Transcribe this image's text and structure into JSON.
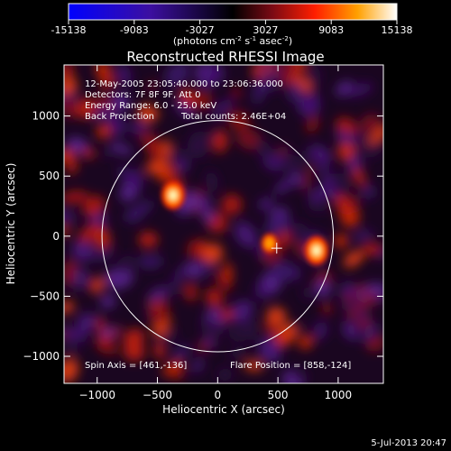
{
  "chart_data": {
    "type": "heatmap",
    "title": "Reconstructed RHESSI Image",
    "xlabel": "Heliocentric X (arcsec)",
    "ylabel": "Heliocentric Y (arcsec)",
    "xlim": [
      -1275,
      1375
    ],
    "ylim": [
      -1225,
      1425
    ],
    "xticks": [
      -1000,
      -500,
      0,
      500,
      1000
    ],
    "yticks": [
      -1000,
      -500,
      0,
      500,
      1000
    ],
    "colorbar": {
      "ticks": [
        "-15138",
        "-9083",
        "-3027",
        "3027",
        "9083",
        "15138"
      ],
      "range": [
        -15138,
        15138
      ],
      "unit_main": "(photons cm",
      "unit_sup1": "-2",
      "unit_mid1": " s",
      "unit_sup2": "-1",
      "unit_mid2": " asec",
      "unit_sup3": "-2",
      "unit_end": ")"
    },
    "annotations": {
      "line1": "12-May-2005 23:05:40.000 to 23:06:36.000",
      "line2": "Detectors: 7F 8F 9F, Att 0",
      "line3": "Energy Range: 6.0 - 25.0 keV",
      "line4a": "Back Projection",
      "line4b": "Total counts: 2.46E+04",
      "spin_axis": "Spin Axis = [461,-136]",
      "flare_position": "Flare Position = [858,-124]"
    },
    "solar_disk": {
      "center": [
        0,
        0
      ],
      "radius_arcsec": 960
    },
    "map_center_marker": [
      490,
      -100
    ],
    "sources": [
      {
        "x": 820,
        "y": -120,
        "value": 15138
      },
      {
        "x": -370,
        "y": 340,
        "value": 14800
      },
      {
        "x": 430,
        "y": -60,
        "value": 9000
      }
    ],
    "footer_date": "5-Jul-2013 20:47"
  }
}
